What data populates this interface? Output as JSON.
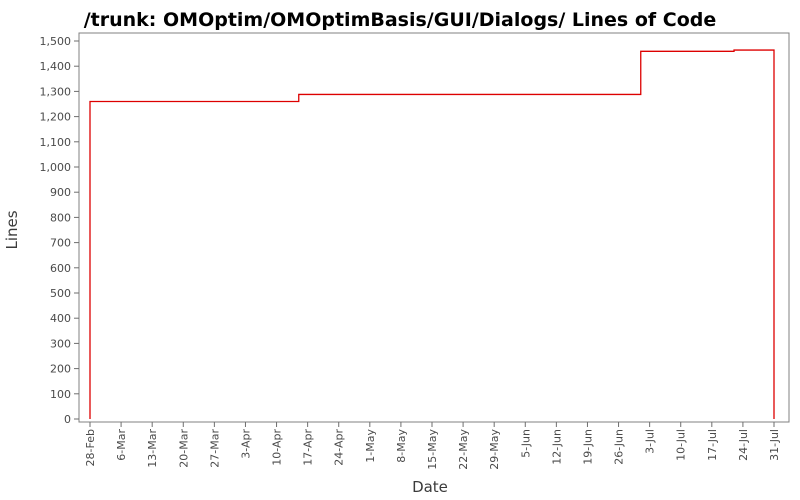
{
  "chart_data": {
    "type": "line",
    "style": "step-after",
    "title": "/trunk: OMOptim/OMOptimBasis/GUI/Dialogs/ Lines of Code",
    "xlabel": "Date",
    "ylabel": "Lines",
    "ylim": [
      0,
      1500
    ],
    "y_tick_step": 100,
    "y_tick_labels": [
      "0",
      "100",
      "200",
      "300",
      "400",
      "500",
      "600",
      "700",
      "800",
      "900",
      "1,000",
      "1,100",
      "1,200",
      "1,300",
      "1,400",
      "1,500"
    ],
    "x_tick_labels": [
      "28-Feb",
      "6-Mar",
      "13-Mar",
      "20-Mar",
      "27-Mar",
      "3-Apr",
      "10-Apr",
      "17-Apr",
      "24-Apr",
      "1-May",
      "8-May",
      "15-May",
      "22-May",
      "29-May",
      "5-Jun",
      "12-Jun",
      "19-Jun",
      "26-Jun",
      "3-Jul",
      "10-Jul",
      "17-Jul",
      "24-Jul",
      "31-Jul"
    ],
    "x_tick_interval_days": 7,
    "grid": false,
    "legend": false,
    "series": [
      {
        "name": "Lines of Code",
        "color": "#dd0000",
        "starts_at_value": 0,
        "points": [
          {
            "day": 0,
            "date": "28-Feb",
            "value": 1260
          },
          {
            "day": 47,
            "date": "15-Apr",
            "value": 1288
          },
          {
            "day": 124,
            "date": "1-Jul",
            "value": 1459
          },
          {
            "day": 145,
            "date": "22-Jul",
            "value": 1464
          },
          {
            "day": 154,
            "date": "31-Jul",
            "value": 0
          }
        ]
      }
    ]
  }
}
